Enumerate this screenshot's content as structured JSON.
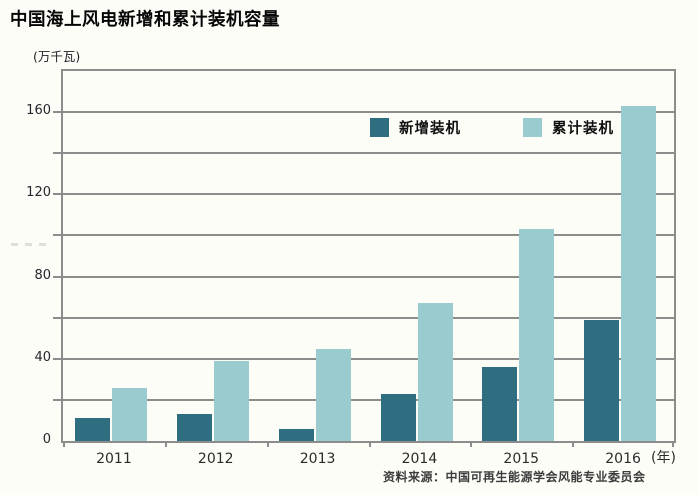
{
  "title": "中国海上风电新增和累计装机容量",
  "unit_label": "(万千瓦)",
  "x_axis_suffix": "(年)",
  "source": "资料来源：中国可再生能源学会风能专业委员会",
  "legend": {
    "new_label": "新增装机",
    "cumulative_label": "累计装机"
  },
  "colors": {
    "new_series": "#2e6e80",
    "cumulative_series": "#9acbcf",
    "grid": "#8c8c8c",
    "background": "#fdfdf8"
  },
  "chart_data": {
    "type": "bar",
    "title": "中国海上风电新增和累计装机容量",
    "categories": [
      "2011",
      "2012",
      "2013",
      "2014",
      "2015",
      "2016"
    ],
    "series": [
      {
        "name": "新增装机",
        "color": "#2e6e80",
        "values": [
          11,
          13,
          6,
          23,
          36,
          59
        ]
      },
      {
        "name": "累计装机",
        "color": "#9acbcf",
        "values": [
          26,
          39,
          45,
          67,
          103,
          163
        ]
      }
    ],
    "xlabel": "年",
    "ylabel": "万千瓦",
    "ylim": [
      0,
      180
    ],
    "grid_interval": 20,
    "label_interval": 40,
    "grid": true,
    "legend_position": "top-center-inside"
  }
}
